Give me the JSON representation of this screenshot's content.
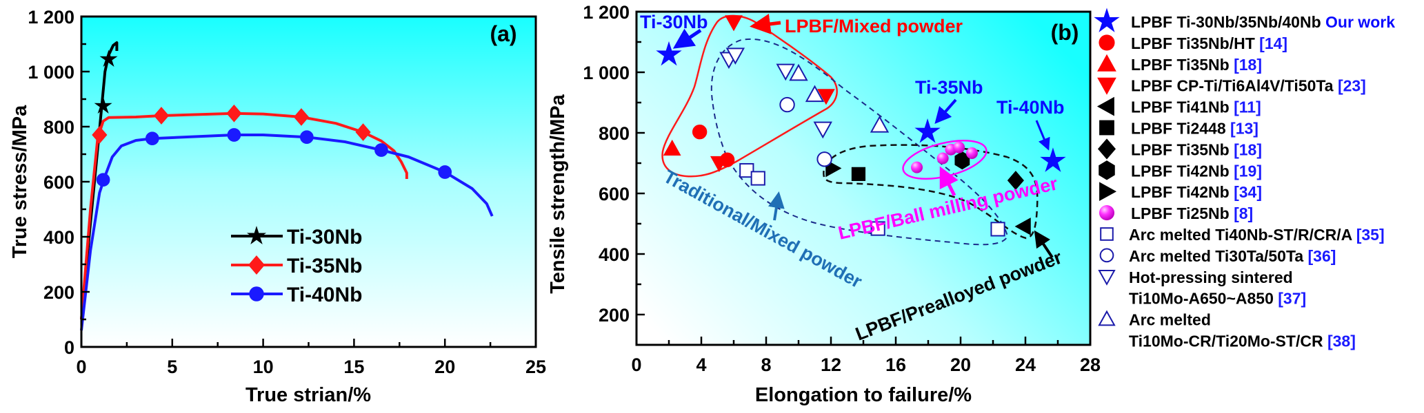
{
  "chart_data": [
    {
      "type": "line",
      "panel_label": "(a)",
      "xlabel": "True strian/%",
      "ylabel": "True stress/MPa",
      "xlim": [
        0,
        25
      ],
      "ylim": [
        0,
        1200
      ],
      "xticks": [
        0,
        5,
        10,
        15,
        20,
        25
      ],
      "xtick_labels": [
        "0",
        "5",
        "10",
        "15",
        "20",
        "25"
      ],
      "yticks": [
        0,
        200,
        400,
        600,
        800,
        1000,
        1200
      ],
      "ytick_labels": [
        "0",
        "200",
        "400",
        "600",
        "800",
        "1 000",
        "1 200"
      ],
      "legend_position": "lower-right",
      "series": [
        {
          "name": "Ti-30Nb",
          "color": "#000000",
          "marker": "star",
          "points": [
            [
              0,
              100
            ],
            [
              0.5,
              450
            ],
            [
              1.0,
              790
            ],
            [
              1.3,
              1000
            ],
            [
              1.5,
              1060
            ],
            [
              1.75,
              1095
            ],
            [
              1.95,
              1105
            ],
            [
              1.95,
              1075
            ]
          ],
          "marker_points": [
            [
              1.2,
              875
            ],
            [
              1.5,
              1045
            ]
          ]
        },
        {
          "name": "Ti-35Nb",
          "color": "#ff1a1a",
          "marker": "diamond",
          "points": [
            [
              0,
              100
            ],
            [
              0.5,
              500
            ],
            [
              0.9,
              760
            ],
            [
              1.2,
              820
            ],
            [
              1.5,
              833
            ],
            [
              3,
              835
            ],
            [
              4.4,
              840
            ],
            [
              8.4,
              848
            ],
            [
              10,
              846
            ],
            [
              12.1,
              835
            ],
            [
              14,
              812
            ],
            [
              15.5,
              780
            ],
            [
              16.5,
              748
            ],
            [
              17.2,
              712
            ],
            [
              17.6,
              672
            ],
            [
              17.9,
              632
            ],
            [
              17.9,
              610
            ]
          ],
          "marker_points": [
            [
              1.0,
              770
            ],
            [
              4.4,
              840
            ],
            [
              8.4,
              848
            ],
            [
              12.1,
              835
            ],
            [
              15.5,
              780
            ]
          ]
        },
        {
          "name": "Ti-40Nb",
          "color": "#1a1aff",
          "marker": "circle",
          "points": [
            [
              0,
              60
            ],
            [
              0.5,
              350
            ],
            [
              1.0,
              560
            ],
            [
              1.3,
              620
            ],
            [
              1.7,
              690
            ],
            [
              2.2,
              730
            ],
            [
              3,
              750
            ],
            [
              3.9,
              757
            ],
            [
              8.4,
              770
            ],
            [
              10,
              770
            ],
            [
              12.4,
              762
            ],
            [
              14.5,
              745
            ],
            [
              16.5,
              715
            ],
            [
              18,
              690
            ],
            [
              20,
              635
            ],
            [
              21.5,
              575
            ],
            [
              22.3,
              520
            ],
            [
              22.6,
              475
            ]
          ],
          "marker_points": [
            [
              1.2,
              607
            ],
            [
              3.9,
              757
            ],
            [
              8.4,
              770
            ],
            [
              12.4,
              762
            ],
            [
              16.5,
              715
            ],
            [
              20,
              635
            ]
          ]
        }
      ]
    },
    {
      "type": "scatter",
      "panel_label": "(b)",
      "xlabel": "Elongation to failure/%",
      "ylabel": "Tensile strength/MPa",
      "xlim": [
        0,
        28
      ],
      "ylim": [
        100,
        1200
      ],
      "xticks": [
        0,
        4,
        8,
        12,
        16,
        20,
        24,
        28
      ],
      "xtick_labels": [
        "0",
        "4",
        "8",
        "12",
        "16",
        "20",
        "24",
        "28"
      ],
      "yticks": [
        200,
        400,
        600,
        800,
        1000,
        1200
      ],
      "ytick_labels": [
        "200",
        "400",
        "600",
        "800",
        "1 000",
        "1 200"
      ],
      "legend_position": "outside-right",
      "series": [
        {
          "legend": [
            "LPBF  Ti-30Nb/35Nb/40Nb"
          ],
          "ref": "Our work",
          "marker": "star",
          "color": "#0a0aff",
          "filled": true,
          "points": [
            [
              2.0,
              1058
            ],
            [
              17.96,
              803
            ],
            [
              25.7,
              707
            ]
          ]
        },
        {
          "legend": [
            "LPBF  Ti35Nb/HT"
          ],
          "ref": "[14]",
          "marker": "circle",
          "color": "#ff0000",
          "filled": true,
          "points": [
            [
              3.9,
              803
            ],
            [
              5.6,
              711
            ]
          ]
        },
        {
          "legend": [
            "LPBF  Ti35Nb"
          ],
          "ref": "[18]",
          "marker": "triangle-up",
          "color": "#ff0000",
          "filled": true,
          "points": [
            [
              2.2,
              748
            ]
          ]
        },
        {
          "legend": [
            "LPBF  CP-Ti/Ti6Al4V/Ti50Ta"
          ],
          "ref": "[23]",
          "marker": "triangle-down",
          "color": "#ff0000",
          "filled": true,
          "points": [
            [
              6.0,
              1165
            ],
            [
              11.7,
              922
            ],
            [
              5.1,
              700
            ]
          ]
        },
        {
          "legend": [
            "LPBF  Ti41Nb"
          ],
          "ref": "[11]",
          "marker": "triangle-left",
          "color": "#000000",
          "filled": true,
          "points": [
            [
              23.9,
              491
            ]
          ]
        },
        {
          "legend": [
            "LPBF  Ti2448"
          ],
          "ref": "[13]",
          "marker": "square",
          "color": "#000000",
          "filled": true,
          "points": [
            [
              13.7,
              664
            ]
          ]
        },
        {
          "legend": [
            "LPBF  Ti35Nb"
          ],
          "ref": "[18]",
          "marker": "diamond",
          "color": "#000000",
          "filled": true,
          "points": [
            [
              23.4,
              643
            ]
          ]
        },
        {
          "legend": [
            "LPBF  Ti42Nb"
          ],
          "ref": "[19]",
          "marker": "hexagon",
          "color": "#000000",
          "filled": true,
          "points": [
            [
              20.1,
              709
            ]
          ]
        },
        {
          "legend": [
            "LPBF  Ti42Nb"
          ],
          "ref": "[34]",
          "marker": "triangle-right",
          "color": "#000000",
          "filled": true,
          "points": [
            [
              12.1,
              683
            ]
          ]
        },
        {
          "legend": [
            "LPBF  Ti25Nb"
          ],
          "ref": "[8]",
          "marker": "sphere",
          "color": "#ff00ff",
          "filled": true,
          "points": [
            [
              17.3,
              686
            ],
            [
              18.9,
              716
            ],
            [
              19.4,
              745
            ],
            [
              19.9,
              752
            ],
            [
              20.7,
              733
            ]
          ]
        },
        {
          "legend": [
            "Arc melted Ti40Nb-ST/R/CR/A"
          ],
          "ref": "[35]",
          "marker": "square",
          "color": "#1a1aaa",
          "filled": false,
          "points": [
            [
              6.8,
              676
            ],
            [
              7.5,
              650
            ],
            [
              14.9,
              484
            ],
            [
              22.3,
              482
            ]
          ]
        },
        {
          "legend": [
            "Arc melted Ti30Ta/50Ta"
          ],
          "ref": "[36]",
          "marker": "circle",
          "color": "#1a1aaa",
          "filled": false,
          "points": [
            [
              9.3,
              893
            ],
            [
              11.6,
              713
            ]
          ]
        },
        {
          "legend": [
            "Hot-pressing sintered",
            "Ti10Mo-A650~A850"
          ],
          "ref": "[37]",
          "marker": "triangle-down",
          "color": "#1a1aaa",
          "filled": false,
          "points": [
            [
              5.7,
              1043
            ],
            [
              6.1,
              1057
            ],
            [
              9.2,
              1004
            ],
            [
              11.5,
              813
            ]
          ]
        },
        {
          "legend": [
            "Arc melted",
            "Ti10Mo-CR/Ti20Mo-ST/CR"
          ],
          "ref": "[38]",
          "marker": "triangle-up",
          "color": "#1a1aaa",
          "filled": false,
          "points": [
            [
              10.0,
              996
            ],
            [
              11.0,
              926
            ],
            [
              15.0,
              825
            ]
          ]
        }
      ],
      "annotations": {
        "ti30": "Ti-30Nb",
        "ti35": "Ti-35Nb",
        "ti40": "Ti-40Nb",
        "mixed": "LPBF/Mixed powder",
        "traditional": "Traditional/Mixed powder",
        "ball": "LPBF/Ball milling powder",
        "prealloyed": "LPBF/Prealloyed powder"
      },
      "colors": {
        "our_work": "#0a0aff",
        "ref": "#1a1aff",
        "mixed": "#ff0000",
        "traditional": "#1f6fb5",
        "ball": "#ff00ff",
        "prealloyed": "#000000",
        "cyan": "#1affff"
      }
    }
  ]
}
